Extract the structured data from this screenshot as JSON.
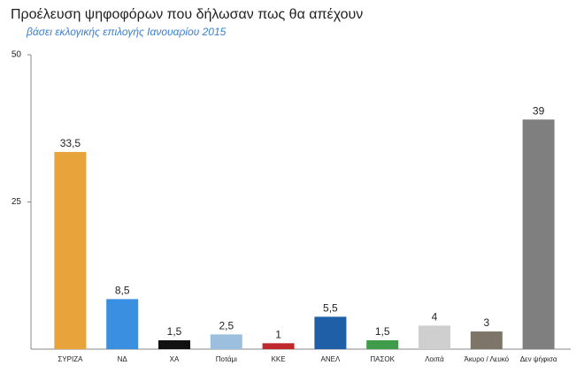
{
  "chart_data": {
    "type": "bar",
    "title": "Προέλευση ψηφοφόρων που δήλωσαν πως θα απέχουν",
    "subtitle": "βάσει εκλογικής επιλογής Ιανουαρίου 2015",
    "categories": [
      "ΣΥΡΙΖΑ",
      "ΝΔ",
      "ΧΑ",
      "Ποτάμι",
      "ΚΚΕ",
      "ΑΝΕΛ",
      "ΠΑΣΟΚ",
      "Λοιπά",
      "Άκυρο / Λευκό",
      "Δεν ψήφισα"
    ],
    "values": [
      33.5,
      8.5,
      1.5,
      2.5,
      1,
      5.5,
      1.5,
      4,
      3,
      39
    ],
    "value_labels": [
      "33,5",
      "8,5",
      "1,5",
      "2,5",
      "1",
      "5,5",
      "1,5",
      "4",
      "3",
      "39"
    ],
    "colors": [
      "#e8a33a",
      "#3a8fe0",
      "#111111",
      "#9cbfe0",
      "#c0292c",
      "#1f5fa8",
      "#3f9b4a",
      "#cfcfcf",
      "#7d7568",
      "#7f7f7f"
    ],
    "ylim": [
      0,
      50
    ],
    "yticks": [
      25,
      50
    ]
  }
}
